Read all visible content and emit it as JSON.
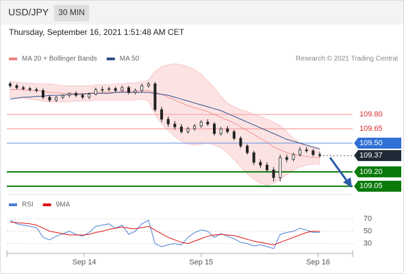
{
  "header": {
    "symbol": "USD/JPY",
    "timeframe": "30 MIN",
    "timestamp": "Thursday, September 16, 2021 1:51:48 AM CET"
  },
  "chart_data": [
    {
      "type": "candlestick",
      "source": "Research © 2021 Trading Central",
      "xlim": [
        -0.5,
        52
      ],
      "ylim": [
        108.97,
        110.28
      ],
      "up_color": "#ffffff",
      "down_color": "#222222",
      "candles": {
        "open": [
          110.12,
          110.1,
          110.08,
          110.07,
          110.06,
          110.05,
          109.98,
          109.95,
          109.98,
          110.0,
          110.02,
          110.0,
          109.98,
          110.01,
          110.06,
          110.06,
          110.07,
          110.05,
          110.08,
          110.03,
          110.05,
          110.1,
          110.12,
          109.85,
          109.75,
          109.7,
          109.67,
          109.62,
          109.65,
          109.68,
          109.72,
          109.7,
          109.6,
          109.65,
          109.62,
          109.55,
          109.47,
          109.4,
          109.3,
          109.27,
          109.22,
          109.14,
          109.35,
          109.33,
          109.38,
          109.43,
          109.42,
          109.38
        ],
        "high": [
          110.14,
          110.12,
          110.1,
          110.09,
          110.08,
          110.07,
          110.0,
          109.99,
          110.01,
          110.03,
          110.04,
          110.02,
          110.03,
          110.08,
          110.09,
          110.09,
          110.09,
          110.1,
          110.1,
          110.07,
          110.12,
          110.14,
          110.14,
          109.88,
          109.78,
          109.73,
          109.7,
          109.67,
          109.7,
          109.74,
          109.75,
          109.72,
          109.67,
          109.68,
          109.64,
          109.57,
          109.49,
          109.42,
          109.33,
          109.3,
          109.25,
          109.38,
          109.38,
          109.4,
          109.46,
          109.46,
          109.44,
          109.41
        ],
        "low": [
          110.08,
          110.06,
          110.05,
          110.04,
          110.03,
          109.96,
          109.93,
          109.93,
          109.96,
          109.98,
          109.98,
          109.96,
          109.96,
          110.0,
          110.03,
          110.04,
          110.03,
          110.04,
          110.01,
          110.01,
          110.03,
          110.08,
          109.83,
          109.72,
          109.67,
          109.64,
          109.6,
          109.6,
          109.63,
          109.66,
          109.68,
          109.58,
          109.58,
          109.6,
          109.53,
          109.45,
          109.38,
          109.27,
          109.24,
          109.2,
          109.1,
          109.1,
          109.3,
          109.31,
          109.36,
          109.4,
          109.36,
          109.35
        ],
        "close": [
          110.1,
          110.08,
          110.07,
          110.06,
          110.05,
          109.98,
          109.95,
          109.98,
          110.0,
          110.02,
          110.0,
          109.98,
          110.01,
          110.06,
          110.06,
          110.07,
          110.05,
          110.08,
          110.03,
          110.05,
          110.1,
          110.12,
          109.85,
          109.75,
          109.7,
          109.67,
          109.62,
          109.65,
          109.68,
          109.72,
          109.7,
          109.6,
          109.65,
          109.62,
          109.55,
          109.47,
          109.4,
          109.3,
          109.27,
          109.22,
          109.14,
          109.35,
          109.33,
          109.38,
          109.43,
          109.42,
          109.38,
          109.37
        ]
      },
      "series": [
        {
          "name": "MA 20 + Bollinger Bands",
          "color": "#f08080",
          "values": [
            110.06,
            110.06,
            110.06,
            110.05,
            110.05,
            110.04,
            110.03,
            110.03,
            110.02,
            110.02,
            110.02,
            110.02,
            110.02,
            110.03,
            110.03,
            110.03,
            110.03,
            110.04,
            110.04,
            110.04,
            110.05,
            110.05,
            110.03,
            110.01,
            109.98,
            109.95,
            109.92,
            109.89,
            109.87,
            109.85,
            109.83,
            109.8,
            109.77,
            109.74,
            109.71,
            109.67,
            109.63,
            109.59,
            109.55,
            109.51,
            109.46,
            109.43,
            109.4,
            109.38,
            109.37,
            109.36,
            109.35,
            109.35
          ],
          "upper": [
            110.14,
            110.14,
            110.13,
            110.13,
            110.12,
            110.12,
            110.12,
            110.11,
            110.1,
            110.1,
            110.1,
            110.1,
            110.1,
            110.11,
            110.11,
            110.11,
            110.12,
            110.12,
            110.13,
            110.13,
            110.14,
            110.16,
            110.25,
            110.3,
            110.32,
            110.33,
            110.32,
            110.3,
            110.27,
            110.22,
            110.15,
            110.08,
            109.99,
            109.92,
            109.88,
            109.85,
            109.83,
            109.8,
            109.78,
            109.75,
            109.72,
            109.68,
            109.62,
            109.55,
            109.5,
            109.47,
            109.45,
            109.44
          ],
          "lower": [
            109.98,
            109.97,
            109.97,
            109.96,
            109.95,
            109.94,
            109.93,
            109.93,
            109.93,
            109.93,
            109.94,
            109.94,
            109.94,
            109.95,
            109.95,
            109.95,
            109.95,
            109.95,
            109.95,
            109.95,
            109.96,
            109.94,
            109.8,
            109.7,
            109.63,
            109.57,
            109.52,
            109.49,
            109.48,
            109.49,
            109.5,
            109.48,
            109.45,
            109.4,
            109.33,
            109.25,
            109.18,
            109.12,
            109.08,
            109.06,
            109.08,
            109.12,
            109.17,
            109.22,
            109.25,
            109.27,
            109.28,
            109.28
          ]
        },
        {
          "name": "MA 50",
          "color": "#2c4f8a",
          "values": [
            109.96,
            109.97,
            109.98,
            109.98,
            109.99,
            109.99,
            110.0,
            110.0,
            110.0,
            110.01,
            110.01,
            110.01,
            110.02,
            110.02,
            110.02,
            110.02,
            110.03,
            110.03,
            110.03,
            110.03,
            110.03,
            110.03,
            110.02,
            110.01,
            110.0,
            109.98,
            109.96,
            109.94,
            109.92,
            109.9,
            109.88,
            109.86,
            109.84,
            109.81,
            109.78,
            109.75,
            109.72,
            109.69,
            109.66,
            109.63,
            109.6,
            109.57,
            109.54,
            109.52,
            109.5,
            109.48,
            109.46,
            109.44
          ]
        }
      ],
      "levels": [
        {
          "value": 109.8,
          "label": "109.80",
          "color": "#d62b2b",
          "line_color": "#f4a0a0",
          "style": "text"
        },
        {
          "value": 109.65,
          "label": "109.65",
          "color": "#d62b2b",
          "line_color": "#f4a0a0",
          "style": "text"
        },
        {
          "value": 109.5,
          "label": "109.50",
          "color": "#2f6fd6",
          "line_color": "#6d98e0",
          "style": "box"
        },
        {
          "value": 109.37,
          "label": "109.37",
          "color": "#1f2a36",
          "line_color": "#555555",
          "style": "current"
        },
        {
          "value": 109.2,
          "label": "109.20",
          "color": "#0a7a0a",
          "line_color": "#0a7a0a",
          "style": "box"
        },
        {
          "value": 109.05,
          "label": "109.05",
          "color": "#0a7a0a",
          "line_color": "#0a7a0a",
          "style": "box"
        }
      ]
    },
    {
      "type": "line",
      "xlim": [
        -0.5,
        52
      ],
      "ylim": [
        14,
        94
      ],
      "yticks": [
        30,
        50,
        70
      ],
      "grid": true,
      "xticks": [
        {
          "value": 11.25,
          "label": "Sep 14"
        },
        {
          "value": 29,
          "label": "Sep 15"
        },
        {
          "value": 46.75,
          "label": "Sep 16"
        }
      ],
      "series": [
        {
          "name": "RSI",
          "color": "#4a7fd4",
          "values": [
            68,
            62,
            60,
            58,
            56,
            40,
            36,
            42,
            46,
            50,
            45,
            42,
            48,
            58,
            60,
            62,
            55,
            60,
            45,
            50,
            62,
            68,
            30,
            25,
            28,
            30,
            28,
            40,
            48,
            52,
            50,
            40,
            46,
            42,
            38,
            32,
            30,
            26,
            28,
            25,
            22,
            45,
            48,
            50,
            55,
            52,
            48,
            48
          ]
        },
        {
          "name": "9MA",
          "color": "#e01010",
          "values": [
            65,
            64,
            63,
            62,
            60,
            55,
            50,
            48,
            46,
            44,
            44,
            44,
            45,
            48,
            50,
            53,
            55,
            57,
            55,
            54,
            56,
            58,
            52,
            46,
            40,
            36,
            32,
            30,
            34,
            38,
            42,
            44,
            45,
            44,
            43,
            40,
            37,
            34,
            32,
            30,
            28,
            32,
            36,
            40,
            44,
            48,
            50,
            50
          ]
        }
      ]
    }
  ]
}
